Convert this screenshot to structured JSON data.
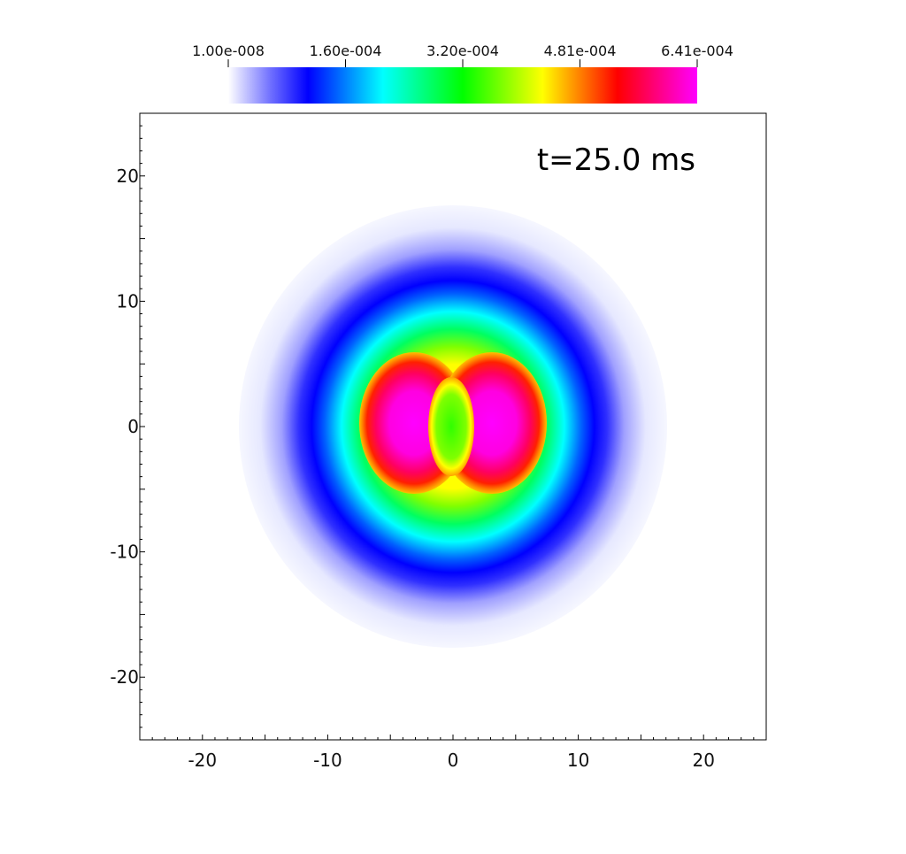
{
  "chart_data": {
    "type": "heatmap",
    "title": "",
    "xlabel": "",
    "ylabel": "",
    "xlim": [
      -25,
      25
    ],
    "ylim": [
      -25,
      25
    ],
    "annotation": "t=25.0 ms",
    "x_ticks": [
      "-20",
      "-10",
      "0",
      "10",
      "20"
    ],
    "x_tick_values": [
      -20,
      -10,
      0,
      10,
      20
    ],
    "y_ticks": [
      "20",
      "10",
      "0",
      "-10",
      "-20"
    ],
    "y_tick_values": [
      20,
      10,
      0,
      -10,
      -20
    ],
    "colorbar": {
      "placement": "top",
      "tick_labels": [
        "1.00e-008",
        "1.60e-004",
        "3.20e-004",
        "4.81e-004",
        "6.41e-004"
      ],
      "tick_values": [
        1e-08,
        0.00016,
        0.00032,
        0.000481,
        0.000641
      ],
      "min": 1e-08,
      "max": 0.000641,
      "colors": [
        "#ffffff",
        "#7070ff",
        "#0000ff",
        "#00ffff",
        "#00ff00",
        "#ffff00",
        "#ff8000",
        "#ff0000",
        "#ff00ff"
      ]
    },
    "field_description_levels": [
      {
        "region": "outer halo",
        "radius": 17,
        "value": 1e-06
      },
      {
        "region": "blue ring",
        "radius": 12,
        "value": 0.00016
      },
      {
        "region": "cyan band",
        "radius": 9.5,
        "value": 0.00024
      },
      {
        "region": "green band",
        "radius": 8,
        "value": 0.00032
      },
      {
        "region": "yellow band",
        "radius": 6.5,
        "value": 0.0004
      },
      {
        "region": "red/magenta lobes",
        "radius": 5,
        "value": 0.000641
      },
      {
        "region": "central ellipse",
        "radius": 2,
        "value": 0.00032
      }
    ]
  }
}
